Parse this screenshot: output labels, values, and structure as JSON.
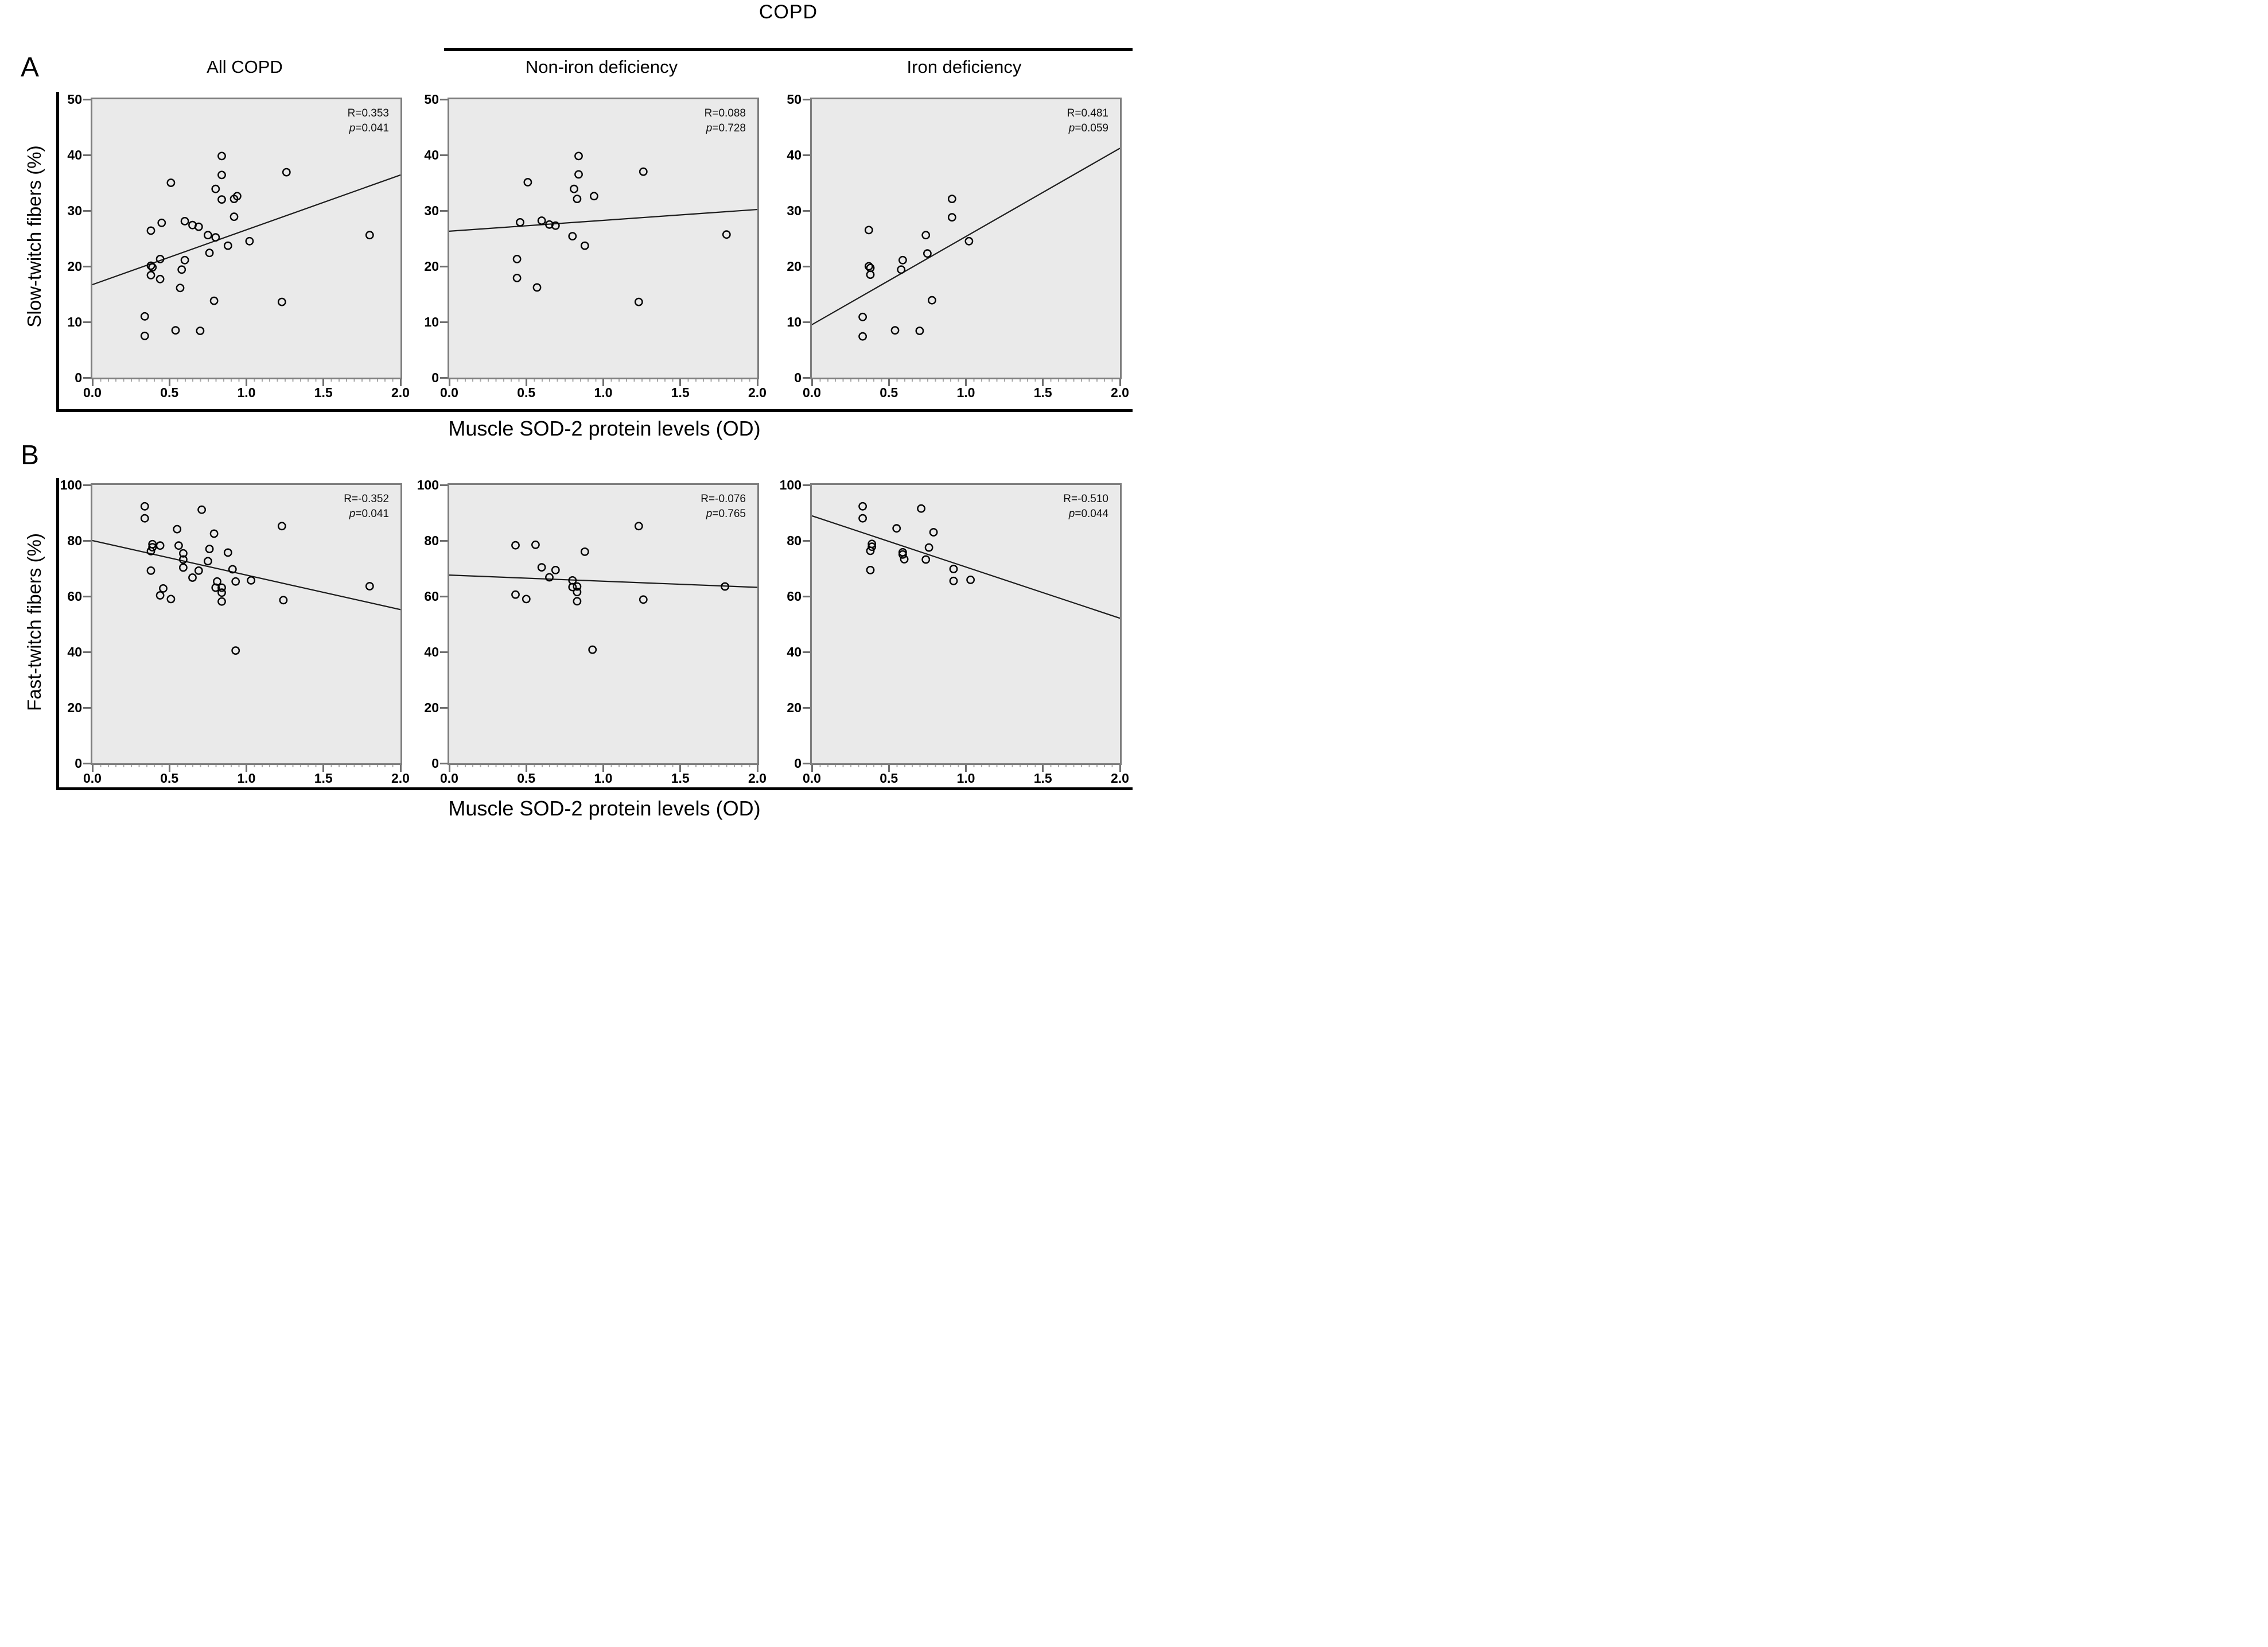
{
  "figure": {
    "group_header": "COPD",
    "panel_label_a": "A",
    "panel_label_b": "B",
    "x_axis_label": "Muscle SOD-2 protein levels (OD)",
    "row_a_ylabel": "Slow-twitch fibers (%)",
    "row_b_ylabel": "Fast-twitch fibers (%)"
  },
  "chart_data": [
    {
      "type": "scatter",
      "row": "A",
      "col": 0,
      "title": "All COPD",
      "xlabel": "Muscle SOD-2 protein levels (OD)",
      "ylabel": "Slow-twitch fibers (%)",
      "xlim": [
        0,
        2
      ],
      "ylim": [
        0,
        50
      ],
      "xtick_labels": [
        "0.0",
        "0.5",
        "1.0",
        "1.5",
        "2.0"
      ],
      "ytick_labels": [
        "50",
        "40",
        "30",
        "20",
        "10",
        "0"
      ],
      "grid": false,
      "stats": {
        "r": "R=0.353",
        "p_var": "p",
        "p_val": "=0.041"
      },
      "fit_line": [
        [
          0,
          16.7
        ],
        [
          2,
          36.4
        ]
      ],
      "points": [
        [
          0.84,
          39.8
        ],
        [
          0.84,
          36.4
        ],
        [
          1.26,
          36.9
        ],
        [
          0.51,
          35.0
        ],
        [
          0.8,
          33.9
        ],
        [
          0.84,
          32.0
        ],
        [
          0.92,
          32.1
        ],
        [
          0.94,
          32.6
        ],
        [
          0.92,
          28.9
        ],
        [
          0.45,
          27.8
        ],
        [
          0.6,
          28.1
        ],
        [
          0.65,
          27.4
        ],
        [
          0.69,
          27.1
        ],
        [
          0.38,
          26.4
        ],
        [
          0.75,
          25.6
        ],
        [
          0.8,
          25.2
        ],
        [
          1.8,
          25.6
        ],
        [
          1.02,
          24.5
        ],
        [
          0.88,
          23.7
        ],
        [
          0.76,
          22.4
        ],
        [
          0.44,
          21.3
        ],
        [
          0.6,
          21.1
        ],
        [
          0.38,
          20.1
        ],
        [
          0.39,
          19.8
        ],
        [
          0.58,
          19.4
        ],
        [
          0.38,
          18.4
        ],
        [
          0.44,
          17.7
        ],
        [
          0.57,
          16.1
        ],
        [
          0.79,
          13.8
        ],
        [
          1.23,
          13.6
        ],
        [
          0.34,
          11.0
        ],
        [
          0.54,
          8.5
        ],
        [
          0.7,
          8.4
        ],
        [
          0.34,
          7.5
        ]
      ]
    },
    {
      "type": "scatter",
      "row": "A",
      "col": 1,
      "title": "Non-iron deficiency",
      "xlabel": "Muscle SOD-2 protein levels (OD)",
      "ylabel": "Slow-twitch fibers (%)",
      "xlim": [
        0,
        2
      ],
      "ylim": [
        0,
        50
      ],
      "xtick_labels": [
        "0.0",
        "0.5",
        "1.0",
        "1.5",
        "2.0"
      ],
      "ytick_labels": [
        "50",
        "40",
        "30",
        "20",
        "10",
        "0"
      ],
      "grid": false,
      "stats": {
        "r": "R=0.088",
        "p_var": "p",
        "p_val": "=0.728"
      },
      "fit_line": [
        [
          0,
          26.3
        ],
        [
          2,
          30.2
        ]
      ],
      "points": [
        [
          0.84,
          39.8
        ],
        [
          0.84,
          36.5
        ],
        [
          1.26,
          37.0
        ],
        [
          0.51,
          35.1
        ],
        [
          0.81,
          33.9
        ],
        [
          0.83,
          32.1
        ],
        [
          0.94,
          32.6
        ],
        [
          0.46,
          27.9
        ],
        [
          0.6,
          28.2
        ],
        [
          0.65,
          27.5
        ],
        [
          0.69,
          27.3
        ],
        [
          0.8,
          25.4
        ],
        [
          1.8,
          25.7
        ],
        [
          0.88,
          23.7
        ],
        [
          0.44,
          21.3
        ],
        [
          0.44,
          17.9
        ],
        [
          0.57,
          16.2
        ],
        [
          1.23,
          13.6
        ]
      ]
    },
    {
      "type": "scatter",
      "row": "A",
      "col": 2,
      "title": "Iron deficiency",
      "xlabel": "Muscle SOD-2 protein levels (OD)",
      "ylabel": "Slow-twitch fibers (%)",
      "xlim": [
        0,
        2
      ],
      "ylim": [
        0,
        50
      ],
      "xtick_labels": [
        "0.0",
        "0.5",
        "1.0",
        "1.5",
        "2.0"
      ],
      "ytick_labels": [
        "50",
        "40",
        "30",
        "20",
        "10",
        "0"
      ],
      "grid": false,
      "stats": {
        "r": "R=0.481",
        "p_var": "p",
        "p_val": "=0.059"
      },
      "fit_line": [
        [
          0,
          9.5
        ],
        [
          2,
          41.2
        ]
      ],
      "points": [
        [
          0.91,
          32.1
        ],
        [
          0.91,
          28.8
        ],
        [
          0.37,
          26.5
        ],
        [
          0.74,
          25.6
        ],
        [
          1.02,
          24.5
        ],
        [
          0.75,
          22.3
        ],
        [
          0.59,
          21.1
        ],
        [
          0.37,
          20.0
        ],
        [
          0.38,
          19.7
        ],
        [
          0.58,
          19.4
        ],
        [
          0.38,
          18.5
        ],
        [
          0.78,
          13.9
        ],
        [
          0.33,
          10.9
        ],
        [
          0.54,
          8.5
        ],
        [
          0.7,
          8.4
        ],
        [
          0.33,
          7.4
        ]
      ]
    },
    {
      "type": "scatter",
      "row": "B",
      "col": 0,
      "title": "",
      "xlabel": "Muscle SOD-2 protein levels (OD)",
      "ylabel": "Fast-twitch fibers (%)",
      "xlim": [
        0,
        2
      ],
      "ylim": [
        0,
        100
      ],
      "xtick_labels": [
        "0.0",
        "0.5",
        "1.0",
        "1.5",
        "2.0"
      ],
      "ytick_labels": [
        "100",
        "80",
        "60",
        "40",
        "20",
        "0"
      ],
      "grid": false,
      "stats": {
        "r": "R=-0.352",
        "p_var": "p",
        "p_val": "=0.041"
      },
      "fit_line": [
        [
          0,
          80.0
        ],
        [
          2,
          55.2
        ]
      ],
      "points": [
        [
          0.34,
          92.3
        ],
        [
          0.34,
          88.0
        ],
        [
          0.71,
          91.1
        ],
        [
          0.55,
          84.1
        ],
        [
          1.23,
          85.2
        ],
        [
          0.79,
          82.5
        ],
        [
          0.39,
          78.7
        ],
        [
          0.39,
          77.6
        ],
        [
          0.38,
          76.2
        ],
        [
          0.44,
          78.2
        ],
        [
          0.56,
          78.2
        ],
        [
          0.76,
          77.0
        ],
        [
          0.88,
          75.7
        ],
        [
          0.59,
          75.4
        ],
        [
          0.59,
          73.2
        ],
        [
          0.75,
          72.6
        ],
        [
          0.59,
          70.3
        ],
        [
          0.38,
          69.2
        ],
        [
          0.69,
          69.2
        ],
        [
          0.91,
          69.7
        ],
        [
          0.65,
          66.7
        ],
        [
          0.81,
          65.3
        ],
        [
          0.93,
          65.3
        ],
        [
          1.03,
          65.7
        ],
        [
          0.8,
          63.1
        ],
        [
          0.84,
          63.1
        ],
        [
          0.84,
          61.3
        ],
        [
          0.46,
          62.8
        ],
        [
          0.44,
          60.3
        ],
        [
          0.51,
          59.0
        ],
        [
          1.24,
          58.6
        ],
        [
          0.84,
          58.1
        ],
        [
          1.8,
          63.6
        ],
        [
          0.93,
          40.5
        ]
      ]
    },
    {
      "type": "scatter",
      "row": "B",
      "col": 1,
      "title": "",
      "xlabel": "Muscle SOD-2 protein levels (OD)",
      "ylabel": "Fast-twitch fibers (%)",
      "xlim": [
        0,
        2
      ],
      "ylim": [
        0,
        100
      ],
      "xtick_labels": [
        "0.0",
        "0.5",
        "1.0",
        "1.5",
        "2.0"
      ],
      "ytick_labels": [
        "100",
        "80",
        "60",
        "40",
        "20",
        "0"
      ],
      "grid": false,
      "stats": {
        "r": "R=-0.076",
        "p_var": "p",
        "p_val": "=0.765"
      },
      "fit_line": [
        [
          0,
          67.6
        ],
        [
          2,
          63.2
        ]
      ],
      "points": [
        [
          1.23,
          85.2
        ],
        [
          0.43,
          78.3
        ],
        [
          0.56,
          78.5
        ],
        [
          0.88,
          76.0
        ],
        [
          0.6,
          70.4
        ],
        [
          0.69,
          69.4
        ],
        [
          0.65,
          66.8
        ],
        [
          0.8,
          65.7
        ],
        [
          0.8,
          63.3
        ],
        [
          0.83,
          63.5
        ],
        [
          0.83,
          61.5
        ],
        [
          0.43,
          60.6
        ],
        [
          0.5,
          59.0
        ],
        [
          0.83,
          58.2
        ],
        [
          1.26,
          58.8
        ],
        [
          1.79,
          63.5
        ],
        [
          0.93,
          40.8
        ]
      ]
    },
    {
      "type": "scatter",
      "row": "B",
      "col": 2,
      "title": "",
      "xlabel": "Muscle SOD-2 protein levels (OD)",
      "ylabel": "Fast-twitch fibers (%)",
      "xlim": [
        0,
        2
      ],
      "ylim": [
        0,
        100
      ],
      "xtick_labels": [
        "0.0",
        "0.5",
        "1.0",
        "1.5",
        "2.0"
      ],
      "ytick_labels": [
        "100",
        "80",
        "60",
        "40",
        "20",
        "0"
      ],
      "grid": false,
      "stats": {
        "r": "R=-0.510",
        "p_var": "p",
        "p_val": "=0.044"
      },
      "fit_line": [
        [
          0,
          88.9
        ],
        [
          2,
          52.1
        ]
      ],
      "points": [
        [
          0.33,
          92.3
        ],
        [
          0.33,
          88.0
        ],
        [
          0.71,
          91.5
        ],
        [
          0.55,
          84.4
        ],
        [
          0.79,
          83.0
        ],
        [
          0.39,
          78.8
        ],
        [
          0.39,
          77.8
        ],
        [
          0.38,
          76.3
        ],
        [
          0.59,
          75.8
        ],
        [
          0.59,
          75.0
        ],
        [
          0.76,
          77.5
        ],
        [
          0.6,
          73.3
        ],
        [
          0.74,
          73.2
        ],
        [
          0.38,
          69.4
        ],
        [
          0.92,
          69.8
        ],
        [
          0.92,
          65.5
        ],
        [
          1.03,
          65.9
        ]
      ]
    }
  ]
}
